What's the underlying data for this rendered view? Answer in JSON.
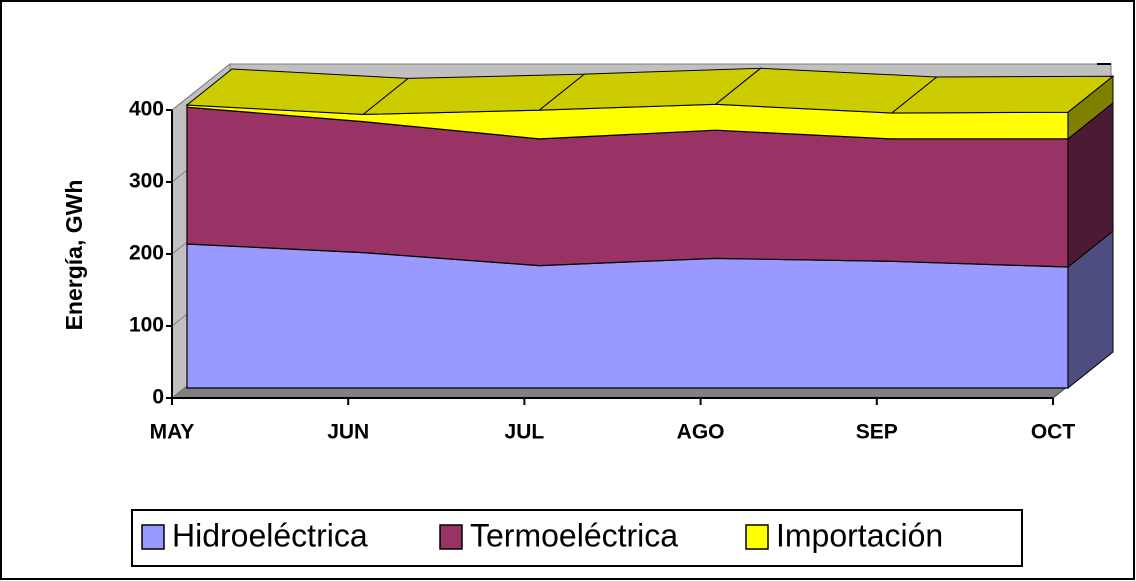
{
  "chart_data": {
    "type": "area",
    "stacked": true,
    "y_label": "Energía, GWh",
    "categories": [
      "MAY",
      "JUN",
      "JUL",
      "AGO",
      "SEP",
      "OCT"
    ],
    "series": [
      {
        "name": "Hidroeléctrica",
        "color": "#9999ff",
        "values": [
          200,
          188,
          170,
          180,
          176,
          168
        ]
      },
      {
        "name": "Termoeléctrica",
        "color": "#993366",
        "values": [
          190,
          182,
          176,
          178,
          170,
          178
        ]
      },
      {
        "name": "Importación",
        "color": "#ffff00",
        "values": [
          3,
          10,
          40,
          36,
          36,
          37
        ]
      }
    ],
    "ylim": [
      0,
      400
    ],
    "yticks": [
      0,
      100,
      200,
      300,
      400
    ],
    "legend": "bottom"
  }
}
